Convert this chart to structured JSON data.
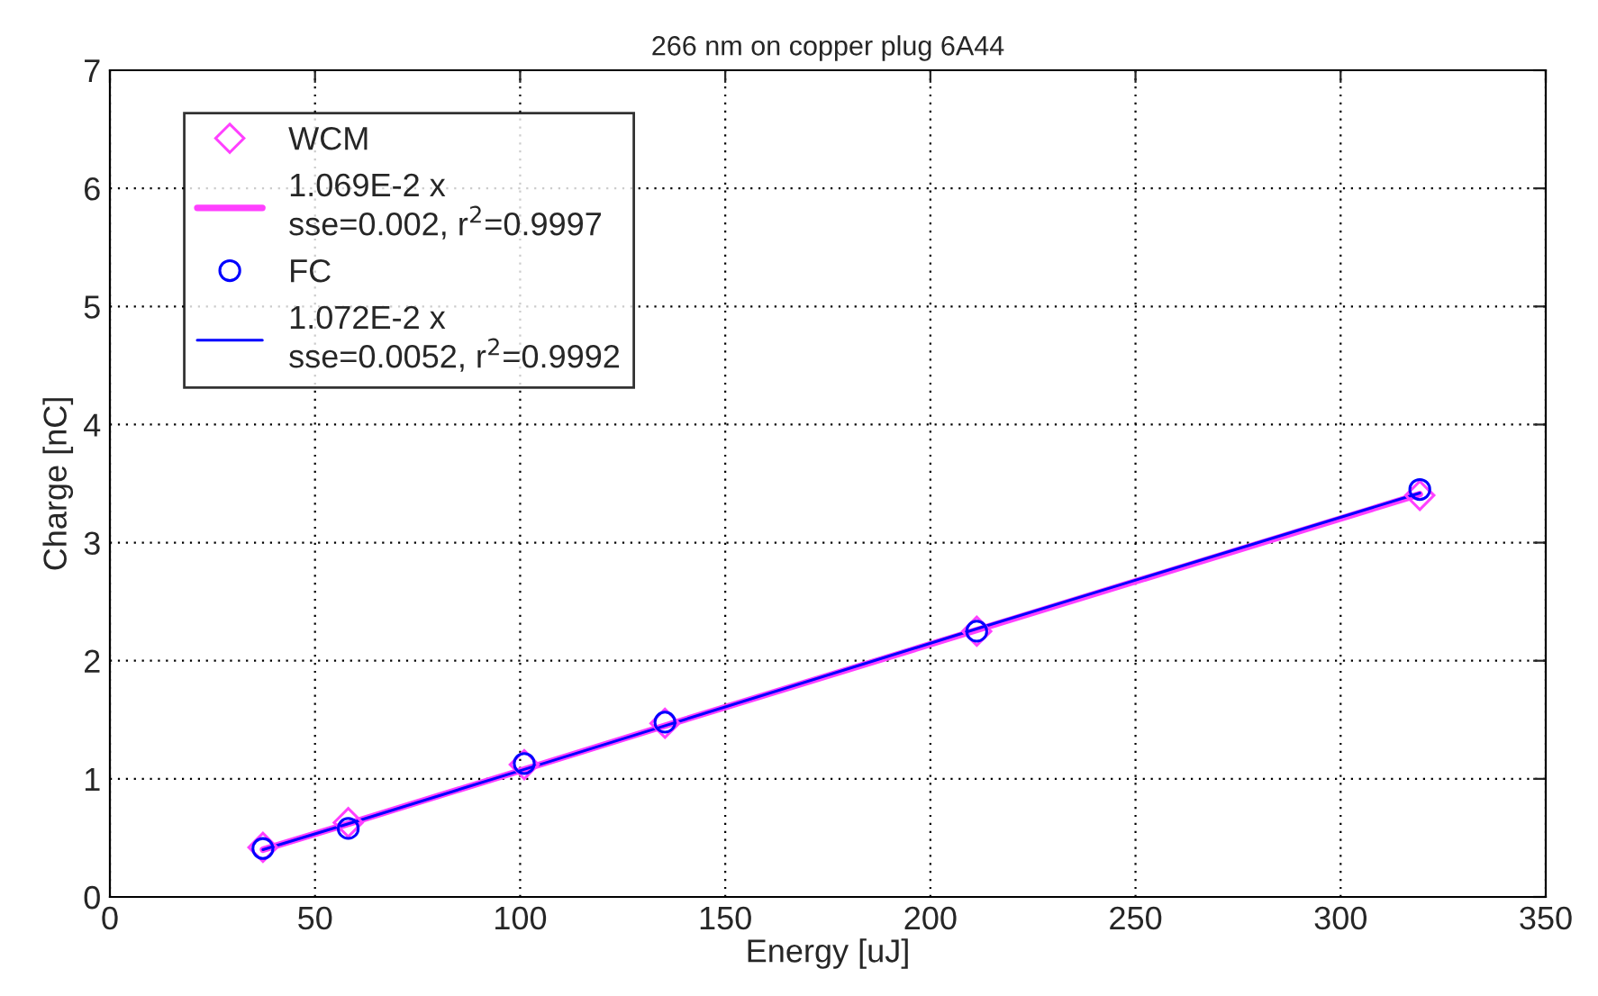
{
  "chart_data": {
    "type": "scatter",
    "title": "266 nm on copper plug 6A44",
    "xlabel": "Energy [uJ]",
    "ylabel": "Charge [nC]",
    "x": [
      37.3,
      58.1,
      101,
      135.3,
      211.3,
      319.3
    ],
    "series": [
      {
        "name": "WCM",
        "color": "#ff40ff",
        "marker": "diamond",
        "values": [
          0.42,
          0.63,
          1.12,
          1.47,
          2.25,
          3.4
        ]
      },
      {
        "name": "1.069E-2 x\nsse=0.002, r$^{2}$=0.9997",
        "type": "line",
        "color": "#ff40ff",
        "marker": "none",
        "values": [
          0.4,
          0.62,
          1.08,
          1.45,
          2.26,
          3.41
        ]
      },
      {
        "name": "FC",
        "color": "#0000ff",
        "marker": "circle",
        "values": [
          0.41,
          0.58,
          1.13,
          1.48,
          2.25,
          3.45
        ]
      },
      {
        "name": "1.072E-2 x\nsse=0.0052, r$^{2}$=0.9992",
        "type": "line",
        "color": "#0000ff",
        "marker": "none",
        "values": [
          0.4,
          0.62,
          1.08,
          1.45,
          2.27,
          3.42
        ]
      }
    ],
    "xlim": [
      0,
      350
    ],
    "xticks": [
      0,
      50,
      100,
      150,
      200,
      250,
      300,
      350
    ],
    "ylim": [
      0,
      7
    ],
    "yticks": [
      0,
      1,
      2,
      3,
      4,
      5,
      6,
      7
    ],
    "grid": true,
    "legend": "top left"
  }
}
